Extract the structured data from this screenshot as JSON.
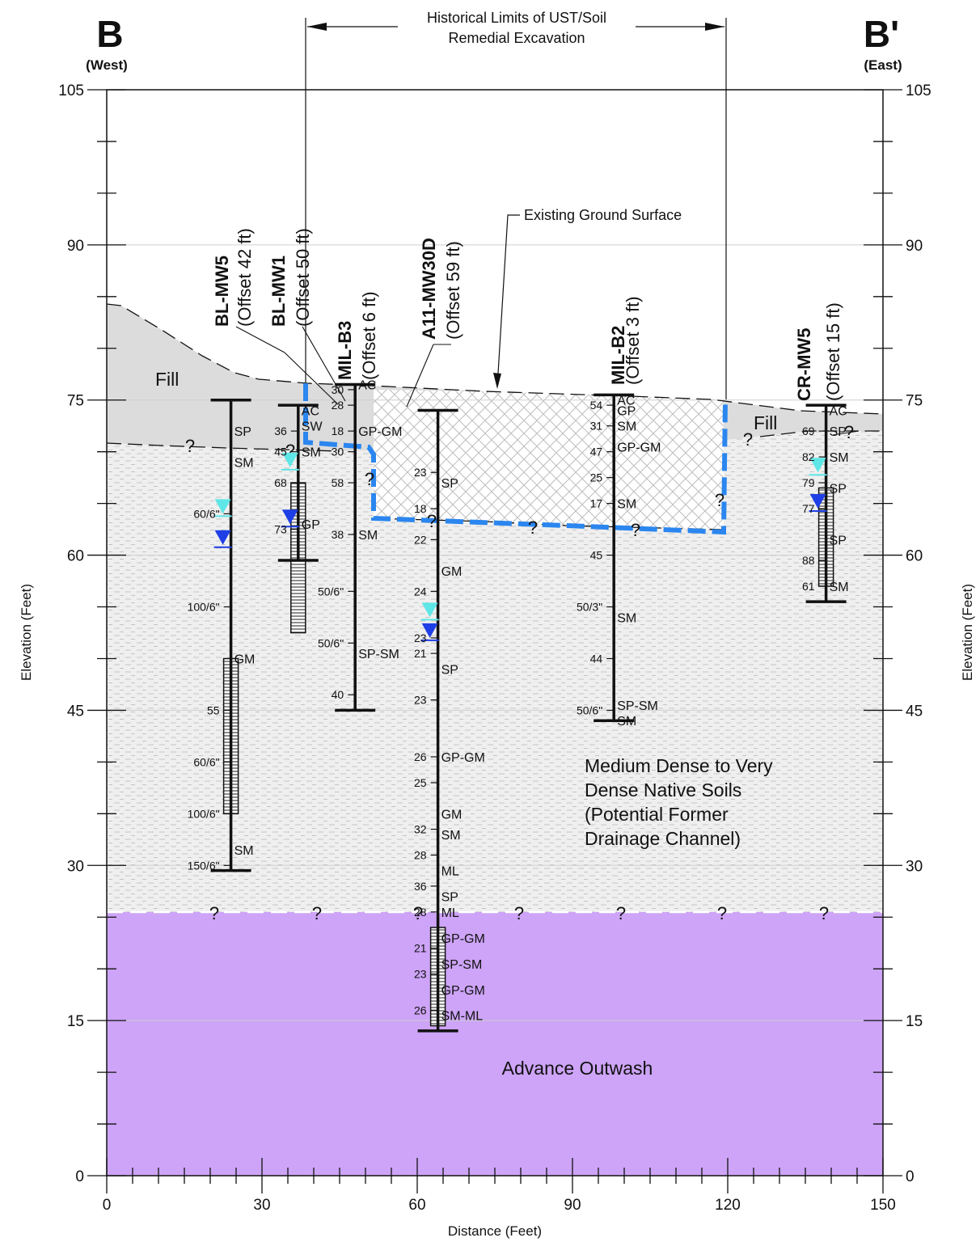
{
  "section": {
    "left_label": "B",
    "right_label": "B'",
    "left_direction": "(West)",
    "right_direction": "(East)"
  },
  "axes": {
    "xlabel": "Distance (Feet)",
    "ylabel": "Elevation (Feet)",
    "x_ticks": [
      0,
      30,
      60,
      90,
      120,
      150
    ],
    "y_ticks": [
      0,
      15,
      30,
      45,
      60,
      75,
      90,
      105
    ],
    "xlim": [
      0,
      150
    ],
    "ylim": [
      0,
      105
    ]
  },
  "annotations": {
    "excavation": "Historical Limits of UST/Soil Remedial Excavation",
    "excavation_line1": "Historical Limits of UST/Soil",
    "excavation_line2": "Remedial Excavation",
    "ground": "Existing Ground Surface",
    "fill_west": "Fill",
    "fill_east": "Fill",
    "native_line1": "Medium Dense to Very",
    "native_line2": "Dense Native Soils",
    "native_line3": "(Potential Former",
    "native_line4": "Drainage Channel)",
    "outwash": "Advance Outwash",
    "unknown": "?"
  },
  "colors": {
    "fill_zone": "#dcdcdc",
    "native_zone": "#efefef",
    "outwash_zone": "#cda4f7",
    "excavation_line": "#2b86ef",
    "water_level_cyan": "#5fe6e6",
    "water_level_blue": "#1e3fe6"
  },
  "borings": [
    {
      "id": "BL-MW5",
      "offset": "(Offset 42 ft)",
      "x": 24,
      "top": 75,
      "bottom": 29.5,
      "screen": [
        35,
        50
      ],
      "water": [
        64,
        61
      ],
      "blows": [
        {
          "e": 64,
          "v": "60/6\""
        },
        {
          "e": 55,
          "v": "100/6\""
        },
        {
          "e": 45,
          "v": "55"
        },
        {
          "e": 40,
          "v": "60/6\""
        },
        {
          "e": 35,
          "v": "100/6\""
        },
        {
          "e": 30,
          "v": "150/6\""
        }
      ],
      "soils": [
        {
          "e": 72,
          "v": "SP"
        },
        {
          "e": 69,
          "v": "SM"
        },
        {
          "e": 50,
          "v": "GM"
        },
        {
          "e": 31.5,
          "v": "SM"
        }
      ]
    },
    {
      "id": "BL-MW1",
      "offset": "(Offset 50 ft)",
      "x": 37,
      "top": 74.5,
      "bottom": 59.5,
      "screen": [
        52.5,
        67
      ],
      "water": [
        68.5,
        63
      ],
      "blows": [
        {
          "e": 72,
          "v": "36"
        },
        {
          "e": 70,
          "v": "45"
        },
        {
          "e": 67,
          "v": "68"
        },
        {
          "e": 62.5,
          "v": "73"
        }
      ],
      "soils": [
        {
          "e": 74,
          "v": "AC"
        },
        {
          "e": 72.5,
          "v": "SW"
        },
        {
          "e": 70,
          "v": "SM"
        },
        {
          "e": 63,
          "v": "GP"
        }
      ]
    },
    {
      "id": "MIL-B3",
      "offset": "(Offset 6 ft)",
      "x": 48,
      "top": 76.5,
      "bottom": 45,
      "screen": null,
      "water": null,
      "blows": [
        {
          "e": 76,
          "v": "30"
        },
        {
          "e": 74.5,
          "v": "28"
        },
        {
          "e": 72,
          "v": "18"
        },
        {
          "e": 70,
          "v": "30"
        },
        {
          "e": 67,
          "v": "58"
        },
        {
          "e": 62,
          "v": "38"
        },
        {
          "e": 56.5,
          "v": "50/6\""
        },
        {
          "e": 51.5,
          "v": "50/6\""
        },
        {
          "e": 46.5,
          "v": "40"
        }
      ],
      "soils": [
        {
          "e": 76.5,
          "v": "AC"
        },
        {
          "e": 72,
          "v": "GP-GM"
        },
        {
          "e": 62,
          "v": "SM"
        },
        {
          "e": 50.5,
          "v": "SP-SM"
        }
      ]
    },
    {
      "id": "A11-MW30D",
      "offset": "(Offset 59 ft)",
      "x": 64,
      "top": 74,
      "bottom": 14,
      "screen": [
        14.5,
        24
      ],
      "water": [
        54,
        52
      ],
      "blows": [
        {
          "e": 68,
          "v": "23"
        },
        {
          "e": 64.5,
          "v": "18"
        },
        {
          "e": 61.5,
          "v": "22"
        },
        {
          "e": 56.5,
          "v": "24"
        },
        {
          "e": 52,
          "v": "23"
        },
        {
          "e": 50.5,
          "v": "21"
        },
        {
          "e": 46,
          "v": "23"
        },
        {
          "e": 40.5,
          "v": "26"
        },
        {
          "e": 38,
          "v": "25"
        },
        {
          "e": 33.5,
          "v": "32"
        },
        {
          "e": 31,
          "v": "28"
        },
        {
          "e": 28,
          "v": "36"
        },
        {
          "e": 25.5,
          "v": "28"
        },
        {
          "e": 22,
          "v": "21"
        },
        {
          "e": 19.5,
          "v": "23"
        },
        {
          "e": 16,
          "v": "26"
        }
      ],
      "soils": [
        {
          "e": 67,
          "v": "SP"
        },
        {
          "e": 58.5,
          "v": "GM"
        },
        {
          "e": 49,
          "v": "SP"
        },
        {
          "e": 40.5,
          "v": "GP-GM"
        },
        {
          "e": 35,
          "v": "GM"
        },
        {
          "e": 33,
          "v": "SM"
        },
        {
          "e": 29.5,
          "v": "ML"
        },
        {
          "e": 27,
          "v": "SP"
        },
        {
          "e": 25.5,
          "v": "ML"
        },
        {
          "e": 23,
          "v": "GP-GM"
        },
        {
          "e": 20.5,
          "v": "SP-SM"
        },
        {
          "e": 18,
          "v": "GP-GM"
        },
        {
          "e": 15.5,
          "v": "SM-ML"
        }
      ]
    },
    {
      "id": "MIL-B2",
      "offset": "(Offset 3 ft)",
      "x": 98,
      "top": 75.5,
      "bottom": 44,
      "screen": null,
      "water": null,
      "blows": [
        {
          "e": 74.5,
          "v": "54"
        },
        {
          "e": 72.5,
          "v": "31"
        },
        {
          "e": 70,
          "v": "47"
        },
        {
          "e": 67.5,
          "v": "25"
        },
        {
          "e": 65,
          "v": "17"
        },
        {
          "e": 60,
          "v": "45"
        },
        {
          "e": 55,
          "v": "50/3\""
        },
        {
          "e": 50,
          "v": "44"
        },
        {
          "e": 45,
          "v": "50/6\""
        }
      ],
      "soils": [
        {
          "e": 75,
          "v": "AC"
        },
        {
          "e": 74,
          "v": "GP"
        },
        {
          "e": 72.5,
          "v": "SM"
        },
        {
          "e": 70.5,
          "v": "GP-GM"
        },
        {
          "e": 65,
          "v": "SM"
        },
        {
          "e": 54,
          "v": "SM"
        },
        {
          "e": 45.5,
          "v": "SP-SM"
        },
        {
          "e": 44,
          "v": "SM"
        }
      ]
    },
    {
      "id": "CR-MW5",
      "offset": "(Offset 15 ft)",
      "x": 139,
      "top": 74.5,
      "bottom": 55.5,
      "screen": [
        57,
        66.5
      ],
      "water": [
        68,
        64.5
      ],
      "blows": [
        {
          "e": 72,
          "v": "69"
        },
        {
          "e": 69.5,
          "v": "82"
        },
        {
          "e": 67,
          "v": "79"
        },
        {
          "e": 64.5,
          "v": "77"
        },
        {
          "e": 59.5,
          "v": "88"
        },
        {
          "e": 57,
          "v": "61"
        }
      ],
      "soils": [
        {
          "e": 74,
          "v": "AC"
        },
        {
          "e": 72,
          "v": "SP"
        },
        {
          "e": 69.5,
          "v": "SM"
        },
        {
          "e": 66.5,
          "v": "SP"
        },
        {
          "e": 61.5,
          "v": "SP"
        },
        {
          "e": 57,
          "v": "SM"
        }
      ]
    }
  ]
}
